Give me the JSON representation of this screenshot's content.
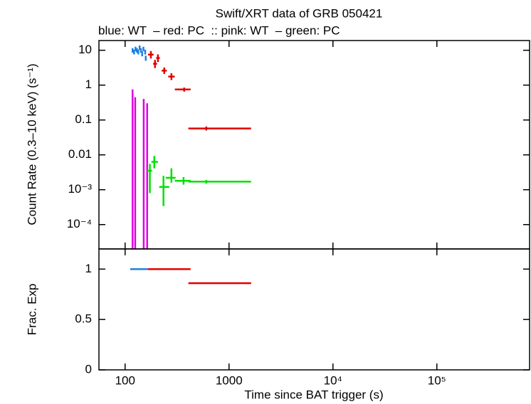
{
  "chart_data": [
    {
      "type": "errorbar",
      "title": "Swift/XRT data of GRB 050421",
      "subtitle": "blue: WT  – red: PC  :: pink: WT  – green: PC",
      "ylabel": "Count Rate (0.3–10 keV) (s⁻¹)",
      "log_x": true,
      "log_y": true,
      "ylim": [
        2e-05,
        19
      ],
      "yticks": [
        10,
        1,
        0.1,
        0.01,
        {
          "value": 0.001,
          "label": "10⁻³"
        },
        {
          "value": 0.0001,
          "label": "10⁻⁴"
        }
      ],
      "series": [
        {
          "color": "#1f7fe0",
          "x": [
            118,
            122,
            126,
            130,
            134,
            138,
            142,
            146,
            150,
            156,
            158
          ],
          "xlo": [
            117,
            121,
            125,
            129,
            133,
            137,
            141,
            145,
            149,
            154,
            156
          ],
          "xhi": [
            119,
            123,
            127,
            131,
            135,
            139,
            143,
            147,
            151,
            158,
            160
          ],
          "y": [
            10,
            9,
            11,
            10,
            9,
            12,
            10,
            8,
            11,
            9,
            6
          ],
          "ylo": [
            8.5,
            7.6,
            9.4,
            8.5,
            7.6,
            10.3,
            8.5,
            6.7,
            9.4,
            7.6,
            5
          ],
          "yhi": [
            11.5,
            10.4,
            12.6,
            11.5,
            10.4,
            13.7,
            11.5,
            9.3,
            12.6,
            10.4,
            7
          ]
        },
        {
          "color": "#e00000",
          "x": [
            177,
            194,
            207,
            238,
            279,
            370,
            604
          ],
          "xlo": [
            166,
            186,
            199,
            225,
            260,
            301,
            406
          ],
          "xhi": [
            188,
            203,
            216,
            252,
            300,
            427,
            1630
          ],
          "y": [
            7.5,
            4.1,
            6,
            2.6,
            1.76,
            0.75,
            0.057
          ],
          "ylo": [
            5.8,
            3.1,
            4.6,
            2.1,
            1.4,
            0.65,
            0.05
          ],
          "yhi": [
            9.5,
            5.3,
            7.6,
            3.2,
            2.2,
            0.85,
            0.065
          ]
        },
        {
          "color": "#e000e0",
          "x": [
            118,
            125,
            151,
            163
          ],
          "xlo": [
            116,
            123,
            149,
            161
          ],
          "xhi": [
            120,
            127,
            153,
            165
          ],
          "y": [
            0.3,
            0.22,
            0.15,
            0.17
          ],
          "ylo": [
            1e-06,
            1e-06,
            1e-06,
            1e-06
          ],
          "yhi": [
            0.75,
            0.45,
            0.4,
            0.3
          ]
        },
        {
          "color": "#00e000",
          "x": [
            173,
            191,
            234,
            279,
            365,
            604
          ],
          "xlo": [
            163,
            179,
            213,
            246,
            301,
            406
          ],
          "xhi": [
            182,
            207,
            266,
            306,
            427,
            1630
          ],
          "y": [
            0.0035,
            0.0063,
            0.0012,
            0.0022,
            0.0018,
            0.0017
          ],
          "ylo": [
            0.0008,
            0.0041,
            0.00034,
            0.0016,
            0.0014,
            0.0015
          ],
          "yhi": [
            0.0055,
            0.0093,
            0.0025,
            0.0041,
            0.0023,
            0.0019
          ]
        }
      ]
    },
    {
      "type": "segments",
      "ylabel": "Frac. Exp",
      "xlabel": "Time since BAT trigger (s)",
      "log_x": true,
      "xlim": [
        56,
        780000
      ],
      "xticks": [
        100,
        1000,
        {
          "value": 10000,
          "label": "10⁴"
        },
        {
          "value": 100000,
          "label": "10⁵"
        }
      ],
      "ylim": [
        0,
        1.2
      ],
      "yticks": [
        0,
        0.5,
        1
      ],
      "series": [
        {
          "color": "#1f7fe0",
          "xlo": [
            112
          ],
          "xhi": [
            166
          ],
          "values": [
            1
          ]
        },
        {
          "color": "#e00000",
          "xlo": [
            166,
            406
          ],
          "xhi": [
            427,
            1630
          ],
          "values": [
            1,
            0.86
          ]
        }
      ]
    }
  ]
}
